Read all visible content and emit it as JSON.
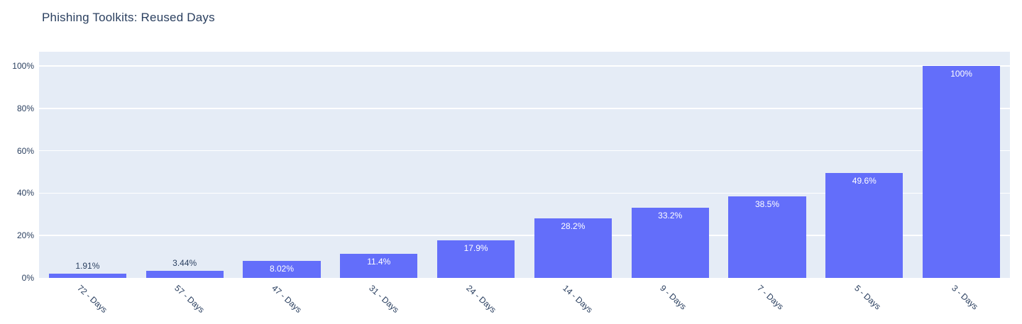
{
  "chart_data": {
    "type": "bar",
    "title": "Phishing Toolkits: Reused Days",
    "categories": [
      "72 - Days",
      "57 - Days",
      "47 - Days",
      "31 - Days",
      "24 - Days",
      "14 - Days",
      "9 - Days",
      "7 - Days",
      "5 - Days",
      "3 - Days"
    ],
    "values": [
      1.91,
      3.44,
      8.02,
      11.4,
      17.9,
      28.2,
      33.2,
      38.5,
      49.6,
      100
    ],
    "value_labels": [
      "1.91%",
      "3.44%",
      "8.02%",
      "11.4%",
      "17.9%",
      "28.2%",
      "33.2%",
      "38.5%",
      "49.6%",
      "100%"
    ],
    "xlabel": "",
    "ylabel": "",
    "y_ticks": [
      {
        "value": 0,
        "label": "0%"
      },
      {
        "value": 20,
        "label": "20%"
      },
      {
        "value": 40,
        "label": "40%"
      },
      {
        "value": 60,
        "label": "60%"
      },
      {
        "value": 80,
        "label": "80%"
      },
      {
        "value": 100,
        "label": "100%"
      }
    ],
    "ylim": [
      0,
      106.7
    ],
    "grid": true,
    "legend_position": "none",
    "colors": {
      "bar": "#636efa",
      "plot_background": "#e5ecf6",
      "gridline": "#ffffff",
      "axis_text": "#2a3f5f",
      "label_outside": "#2a3f5f",
      "label_inside": "#ffffff",
      "paper_background": "#ffffff",
      "title_text": "#2a3f5f"
    }
  }
}
